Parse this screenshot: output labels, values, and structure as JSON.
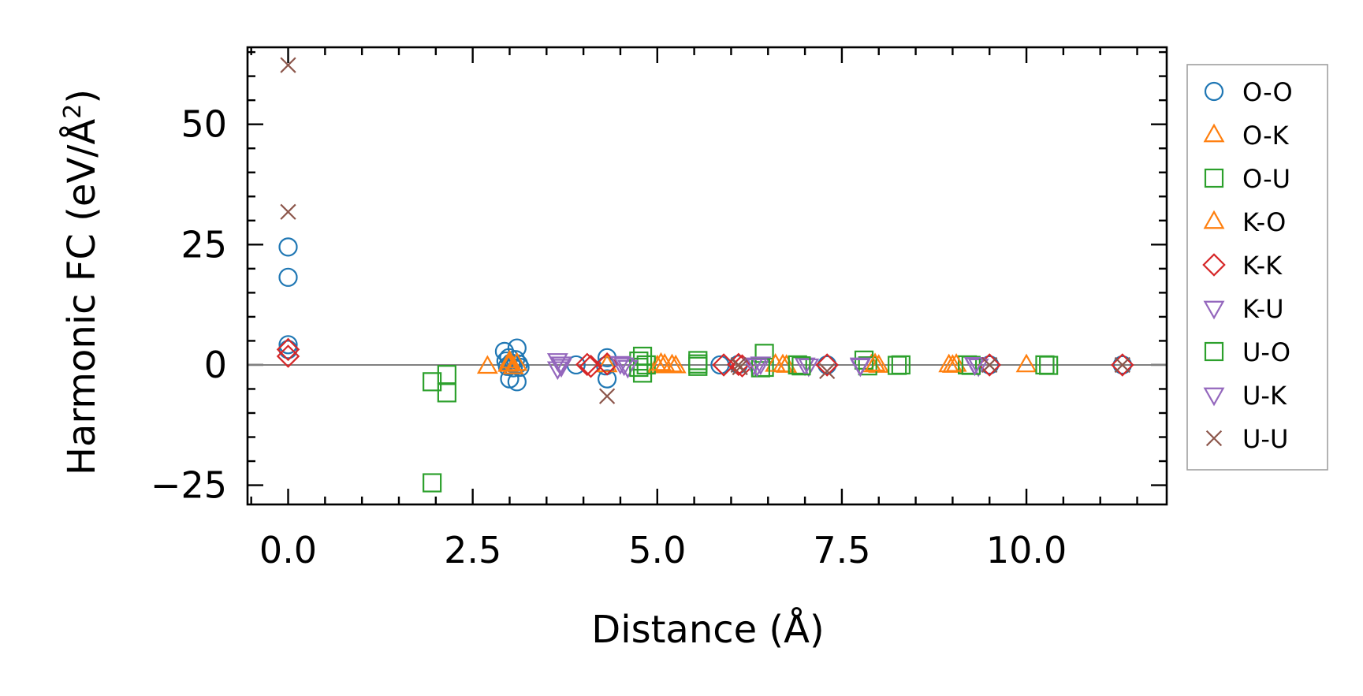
{
  "chart_data": {
    "type": "scatter",
    "xlabel": "Distance (Å)",
    "ylabel_main": "Harmonic FC (eV/Å",
    "ylabel_sup": "2",
    "ylabel_close": ")",
    "xlim": [
      -0.55,
      11.9
    ],
    "ylim": [
      -29,
      66
    ],
    "xticks": [
      0.0,
      2.5,
      5.0,
      7.5,
      10.0
    ],
    "xtick_labels": [
      "0.0",
      "2.5",
      "5.0",
      "7.5",
      "10.0"
    ],
    "yticks": [
      -25,
      0,
      25,
      50
    ],
    "ytick_labels": [
      "−25",
      "0",
      "25",
      "50"
    ],
    "x_minor_step": 0.5,
    "y_minor_step": 5,
    "zero_line": 0,
    "legend_position": "outside-right",
    "series": [
      {
        "name": "O-O",
        "marker": "circle",
        "color": "#1f77b4",
        "points": [
          [
            0,
            24.5
          ],
          [
            0,
            18.2
          ],
          [
            0,
            4.2
          ],
          [
            0,
            3.2
          ],
          [
            2.93,
            2.8
          ],
          [
            2.95,
            0.8
          ],
          [
            2.97,
            -0.3
          ],
          [
            2.99,
            1.5
          ],
          [
            3.0,
            -2.9
          ],
          [
            3.02,
            0.4
          ],
          [
            3.05,
            -0.6
          ],
          [
            3.08,
            1.1
          ],
          [
            3.1,
            3.5
          ],
          [
            3.1,
            -3.5
          ],
          [
            3.12,
            0.2
          ],
          [
            3.14,
            -0.5
          ],
          [
            3.9,
            0
          ],
          [
            4.32,
            1.5
          ],
          [
            4.32,
            -2.9
          ],
          [
            4.3,
            -0.2
          ],
          [
            5.85,
            0
          ],
          [
            6.1,
            0.1
          ],
          [
            7.3,
            0
          ],
          [
            9.5,
            0
          ],
          [
            11.3,
            0
          ]
        ]
      },
      {
        "name": "O-K",
        "marker": "triangle-up",
        "color": "#ff7f0e",
        "points": [
          [
            2.7,
            -0.3
          ],
          [
            2.98,
            0.1
          ],
          [
            3.0,
            0.8
          ],
          [
            3.05,
            -0.4
          ],
          [
            3.1,
            0.3
          ],
          [
            4.32,
            0
          ],
          [
            5.0,
            -0.2
          ],
          [
            5.1,
            0.1
          ],
          [
            5.2,
            0
          ],
          [
            5.25,
            -0.2
          ],
          [
            6.7,
            0
          ],
          [
            6.75,
            -0.1
          ],
          [
            7.9,
            0
          ],
          [
            8.0,
            -0.1
          ],
          [
            8.95,
            0
          ],
          [
            9.0,
            -0.1
          ],
          [
            10.0,
            0
          ]
        ]
      },
      {
        "name": "O-U",
        "marker": "square",
        "color": "#2ca02c",
        "points": [
          [
            1.95,
            -24.5
          ],
          [
            1.95,
            -3.5
          ],
          [
            2.15,
            -2.0
          ],
          [
            2.15,
            -5.8
          ],
          [
            4.75,
            0.8
          ],
          [
            4.8,
            -1.7
          ],
          [
            4.8,
            1.8
          ],
          [
            4.85,
            0
          ],
          [
            5.55,
            0.9
          ],
          [
            5.55,
            -0.3
          ],
          [
            6.45,
            2.4
          ],
          [
            6.45,
            -0.5
          ],
          [
            6.9,
            0
          ],
          [
            7.8,
            1.0
          ],
          [
            7.85,
            -0.2
          ],
          [
            8.3,
            0
          ],
          [
            9.2,
            0
          ],
          [
            10.25,
            0
          ],
          [
            10.3,
            -0.1
          ]
        ]
      },
      {
        "name": "K-O",
        "marker": "triangle-up",
        "color": "#ff7f0e",
        "points": [
          [
            3.0,
            0.2
          ],
          [
            5.05,
            0.3
          ],
          [
            6.6,
            0.1
          ],
          [
            7.95,
            0.2
          ],
          [
            9.05,
            0.1
          ]
        ]
      },
      {
        "name": "K-K",
        "marker": "diamond",
        "color": "#d62728",
        "points": [
          [
            0,
            3.2
          ],
          [
            0,
            1.8
          ],
          [
            4.05,
            0.1
          ],
          [
            4.1,
            -0.3
          ],
          [
            4.32,
            0.2
          ],
          [
            5.9,
            0
          ],
          [
            6.1,
            0.1
          ],
          [
            6.15,
            -0.2
          ],
          [
            7.3,
            0
          ],
          [
            9.5,
            0
          ],
          [
            11.3,
            0
          ]
        ]
      },
      {
        "name": "K-U",
        "marker": "triangle-down",
        "color": "#9467bd",
        "points": [
          [
            3.65,
            0.9
          ],
          [
            3.65,
            -0.8
          ],
          [
            3.7,
            0.2
          ],
          [
            4.5,
            0.3
          ],
          [
            4.6,
            -0.5
          ],
          [
            6.3,
            0
          ],
          [
            6.4,
            0.2
          ],
          [
            7.0,
            0
          ],
          [
            7.05,
            -0.2
          ],
          [
            7.75,
            0
          ],
          [
            9.3,
            0
          ],
          [
            9.35,
            -0.2
          ]
        ]
      },
      {
        "name": "U-O",
        "marker": "square",
        "color": "#2ca02c",
        "points": [
          [
            4.75,
            -0.5
          ],
          [
            5.55,
            0.2
          ],
          [
            6.4,
            -0.6
          ],
          [
            6.95,
            -0.2
          ],
          [
            8.25,
            -0.1
          ],
          [
            9.25,
            -0.1
          ]
        ]
      },
      {
        "name": "U-K",
        "marker": "triangle-down",
        "color": "#9467bd",
        "points": [
          [
            3.7,
            -0.3
          ],
          [
            4.55,
            0
          ],
          [
            6.35,
            -0.2
          ],
          [
            7.75,
            -0.2
          ],
          [
            9.3,
            0.1
          ]
        ]
      },
      {
        "name": "U-U",
        "marker": "x",
        "color": "#8c564b",
        "points": [
          [
            0,
            62.3
          ],
          [
            0,
            31.8
          ],
          [
            4.32,
            -6.5
          ],
          [
            6.1,
            0
          ],
          [
            6.12,
            -0.5
          ],
          [
            7.3,
            -1.3
          ],
          [
            9.5,
            0
          ],
          [
            11.3,
            0
          ]
        ]
      }
    ]
  }
}
